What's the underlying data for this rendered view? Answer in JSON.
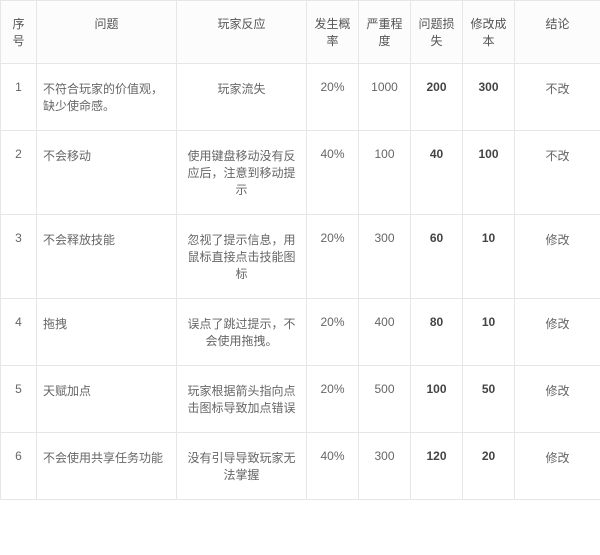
{
  "columns": [
    {
      "key": "idx",
      "label": "序号"
    },
    {
      "key": "prob",
      "label": "问题"
    },
    {
      "key": "react",
      "label": "玩家反应"
    },
    {
      "key": "rate",
      "label": "发生概率"
    },
    {
      "key": "sev",
      "label": "严重程度"
    },
    {
      "key": "loss",
      "label": "问题损失"
    },
    {
      "key": "cost",
      "label": "修改成本"
    },
    {
      "key": "conc",
      "label": "结论"
    }
  ],
  "rows": [
    {
      "idx": "1",
      "prob": "不符合玩家的价值观，缺少使命感。",
      "react": "玩家流失",
      "rate": "20%",
      "sev": "1000",
      "loss": "200",
      "cost": "300",
      "conc": "不改"
    },
    {
      "idx": "2",
      "prob": "不会移动",
      "react": "使用键盘移动没有反应后，注意到移动提示",
      "rate": "40%",
      "sev": "100",
      "loss": "40",
      "cost": "100",
      "conc": "不改"
    },
    {
      "idx": "3",
      "prob": "不会释放技能",
      "react": "忽视了提示信息，用鼠标直接点击技能图标",
      "rate": "20%",
      "sev": "300",
      "loss": "60",
      "cost": "10",
      "conc": "修改"
    },
    {
      "idx": "4",
      "prob": "拖拽",
      "react": "误点了跳过提示，不会使用拖拽。",
      "rate": "20%",
      "sev": "400",
      "loss": "80",
      "cost": "10",
      "conc": "修改"
    },
    {
      "idx": "5",
      "prob": "天赋加点",
      "react": "玩家根据箭头指向点击图标导致加点错误",
      "rate": "20%",
      "sev": "500",
      "loss": "100",
      "cost": "50",
      "conc": "修改"
    },
    {
      "idx": "6",
      "prob": "不会使用共享任务功能",
      "react": "没有引导导致玩家无法掌握",
      "rate": "40%",
      "sev": "300",
      "loss": "120",
      "cost": "20",
      "conc": "修改"
    }
  ]
}
